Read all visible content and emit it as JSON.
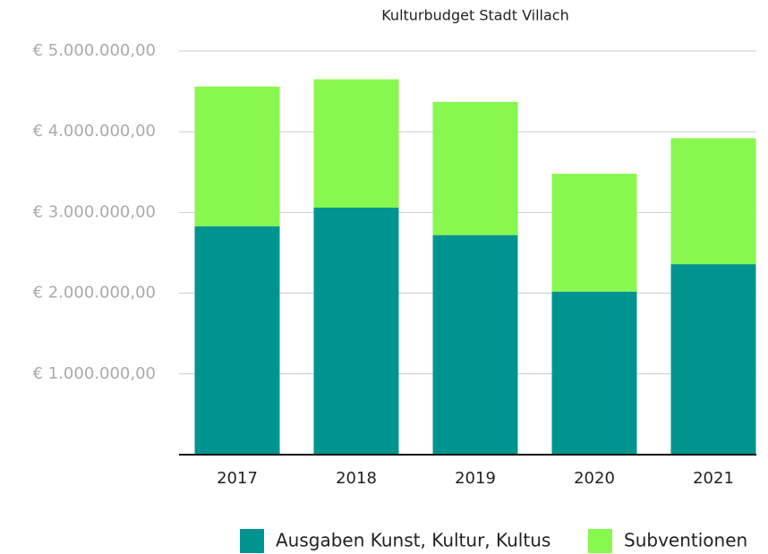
{
  "chart_data": {
    "type": "stacked_bar",
    "title": "Kulturbudget Stadt Villach",
    "categories": [
      "2017",
      "2018",
      "2019",
      "2020",
      "2021"
    ],
    "series": [
      {
        "name": "Ausgaben Kunst, Kultur, Kultus",
        "color": "#009490",
        "values": [
          2830000,
          3060000,
          2720000,
          2020000,
          2360000
        ]
      },
      {
        "name": "Subventionen",
        "color": "#88f74e",
        "values": [
          1730000,
          1590000,
          1650000,
          1460000,
          1560000
        ]
      }
    ],
    "ylim": [
      0,
      5000000
    ],
    "yticks": [
      {
        "value": 1000000,
        "label": "€ 1.000.000,00"
      },
      {
        "value": 2000000,
        "label": "€ 2.000.000,00"
      },
      {
        "value": 3000000,
        "label": "€ 3.000.000,00"
      },
      {
        "value": 4000000,
        "label": "€ 4.000.000,00"
      },
      {
        "value": 5000000,
        "label": "€ 5.000.000,00"
      }
    ],
    "grid": true,
    "legend": "bottom"
  }
}
